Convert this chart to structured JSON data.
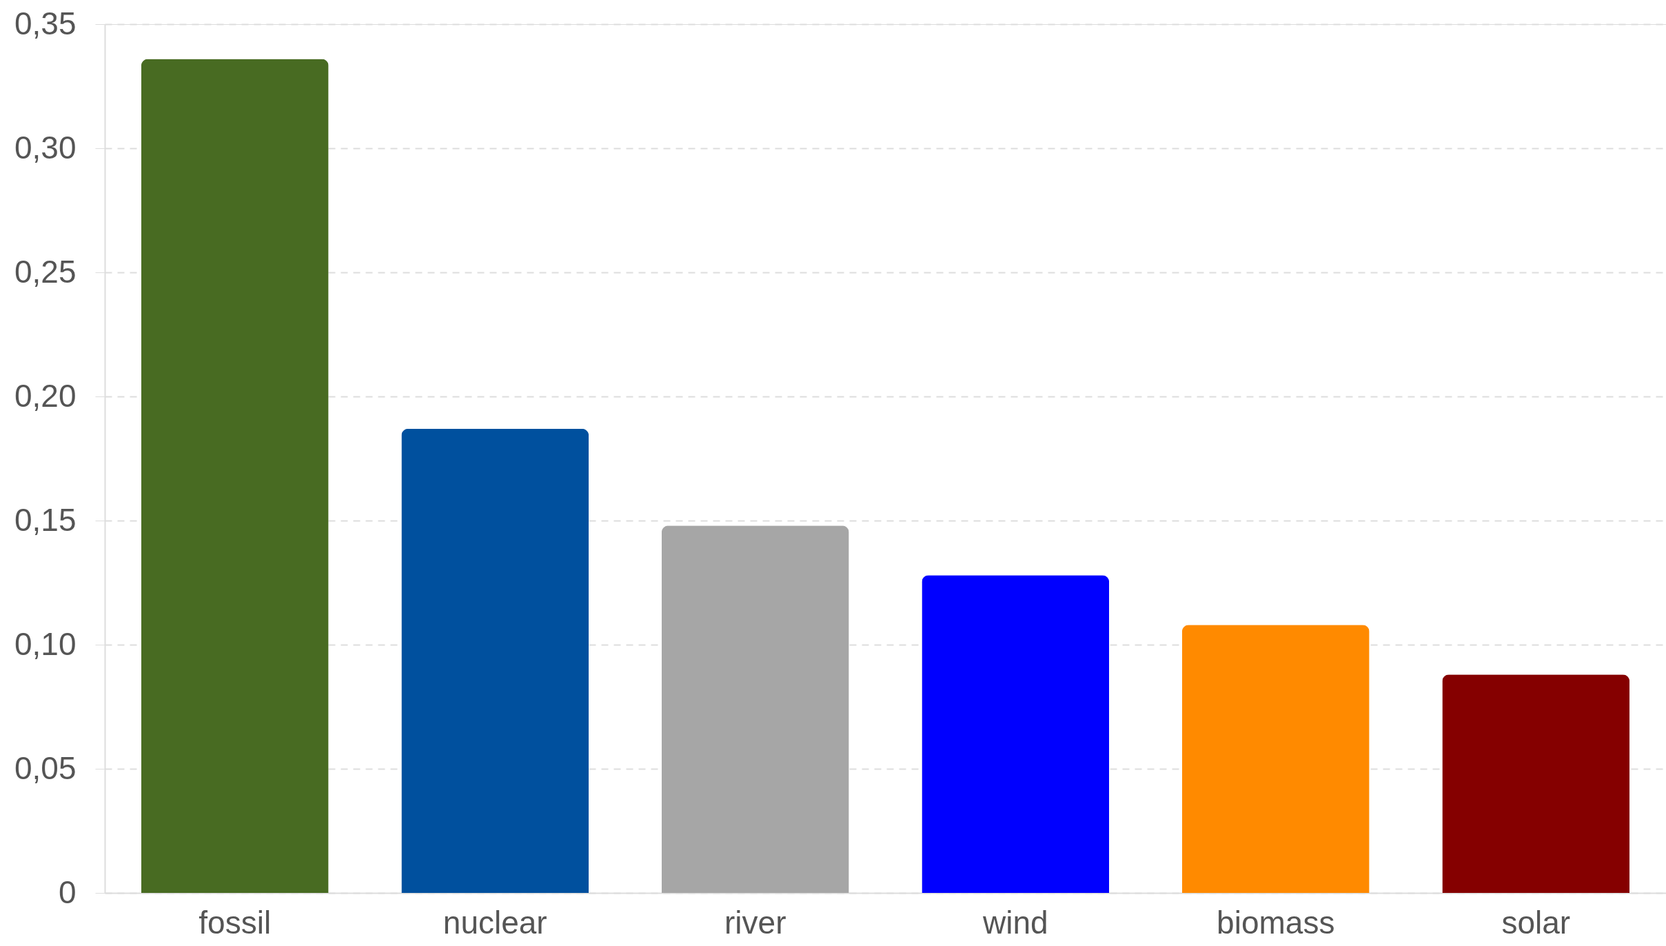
{
  "chart_data": {
    "type": "bar",
    "categories": [
      "fossil",
      "nuclear",
      "river",
      "wind",
      "biomass",
      "solar"
    ],
    "values": [
      0.336,
      0.187,
      0.148,
      0.128,
      0.108,
      0.088
    ],
    "colors": [
      "#486b22",
      "#00509e",
      "#a6a6a6",
      "#0000ff",
      "#ff8a00",
      "#850000"
    ],
    "ylim": [
      0,
      0.35
    ],
    "yticks": [
      0,
      {
        "value": 0.05,
        "label": "0,05"
      },
      {
        "value": 0.1,
        "label": "0,10"
      },
      {
        "value": 0.15,
        "label": "0,15"
      },
      {
        "value": 0.2,
        "label": "0,20"
      },
      {
        "value": 0.25,
        "label": "0,25"
      },
      {
        "value": 0.3,
        "label": "0,30"
      },
      {
        "value": 0.35,
        "label": "0,35"
      }
    ],
    "grid": "y"
  }
}
